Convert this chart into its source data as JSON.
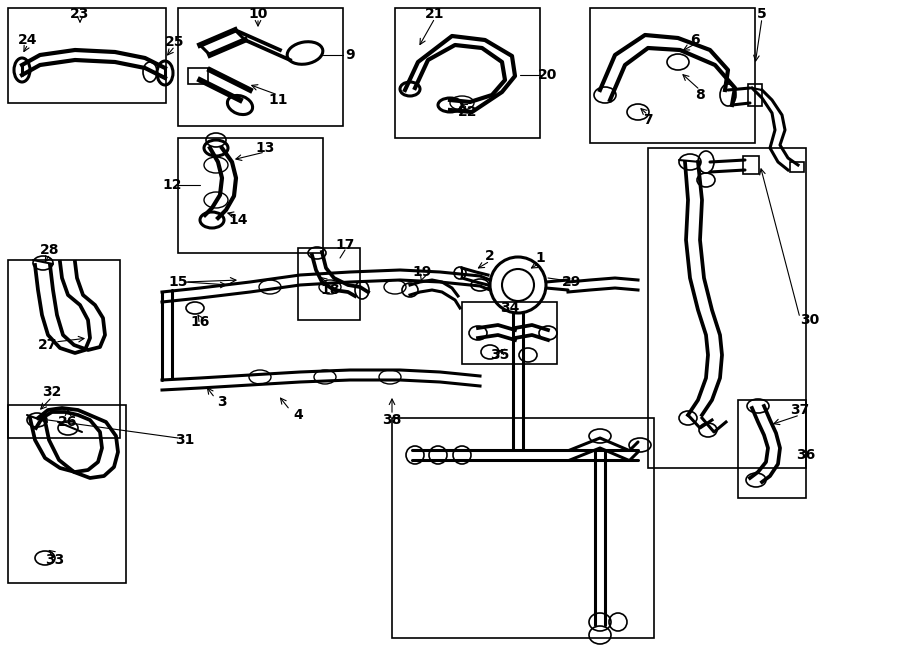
{
  "bg_color": "#ffffff",
  "fig_width": 9.0,
  "fig_height": 6.61,
  "dpi": 100
}
